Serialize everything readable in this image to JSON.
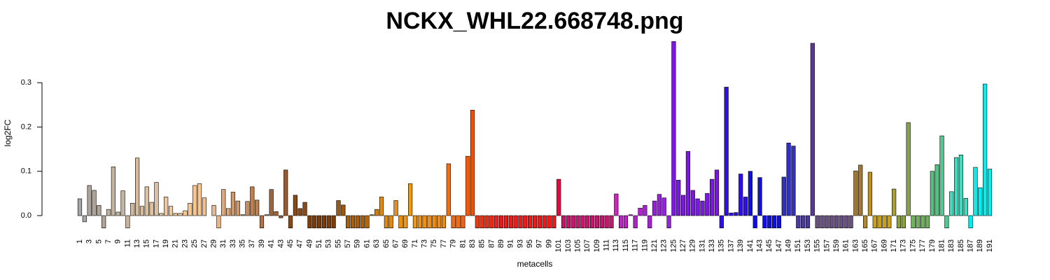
{
  "chart_data": {
    "type": "bar",
    "title": "NCKX_WHL22.668748.png",
    "x_label": "metacells",
    "y_label": "log2FC",
    "categories": [
      "1",
      null,
      "3",
      null,
      "5",
      null,
      "7",
      null,
      "9",
      null,
      "11",
      null,
      "13",
      null,
      "15",
      null,
      "17",
      null,
      "19",
      null,
      "21",
      null,
      "23",
      null,
      "25",
      null,
      "27",
      null,
      "29",
      null,
      "31",
      null,
      "33",
      null,
      "35",
      null,
      "37",
      null,
      "39",
      null,
      "41",
      null,
      "43",
      null,
      "45",
      null,
      "47",
      null,
      "49",
      null,
      "51",
      null,
      "53",
      null,
      "55",
      null,
      "57",
      null,
      "59",
      null,
      "61",
      null,
      "63",
      null,
      "65",
      null,
      "67",
      null,
      "69",
      null,
      "71",
      null,
      "73",
      null,
      "75",
      null,
      "77",
      null,
      "79",
      null,
      "81",
      null,
      "83",
      null,
      "85",
      null,
      "87",
      null,
      "89",
      null,
      "91",
      null,
      "93",
      null,
      "95",
      null,
      "97",
      null,
      "99",
      null,
      "101",
      null,
      "103",
      null,
      "105",
      null,
      "107",
      null,
      "109",
      null,
      "111",
      null,
      "113",
      null,
      "115",
      null,
      "117",
      null,
      "119",
      null,
      "121",
      null,
      "123",
      null,
      "125",
      null,
      "127",
      null,
      "129",
      null,
      "131",
      null,
      "133",
      null,
      "135",
      null,
      "137",
      null,
      "139",
      null,
      "141",
      null,
      "143",
      null,
      "145",
      null,
      "147",
      null,
      "149",
      null,
      "151",
      null,
      "153",
      null,
      "155",
      null,
      "157",
      null,
      "159",
      null,
      "161",
      null,
      "163",
      null,
      "165",
      null,
      "167",
      null,
      "169",
      null,
      "171",
      null,
      "173",
      null,
      "175",
      null,
      "177",
      null,
      "179",
      null,
      "181",
      null,
      "183",
      null,
      "185",
      null,
      "187",
      null,
      "189",
      null,
      "191"
    ],
    "values": [
      0.038,
      -0.014,
      0.068,
      0.057,
      0.023,
      -0.028,
      0.014,
      0.11,
      0.008,
      0.056,
      -0.028,
      0.028,
      0.13,
      0.021,
      0.065,
      0.03,
      0.075,
      0.005,
      0.042,
      0.021,
      0.005,
      0.005,
      0.011,
      0.028,
      0.068,
      0.072,
      0.04,
      0,
      0.023,
      -0.028,
      0.059,
      0.016,
      0.053,
      0.033,
      0.002,
      0.032,
      0.065,
      0.035,
      -0.028,
      0.002,
      0.059,
      0.009,
      -0.005,
      0.103,
      -0.028,
      0.046,
      0.016,
      0.03,
      -0.028,
      -0.028,
      -0.028,
      -0.028,
      -0.028,
      -0.028,
      0.034,
      0.024,
      -0.028,
      -0.028,
      -0.028,
      -0.028,
      -0.028,
      0.002,
      0.014,
      0.042,
      -0.028,
      -0.028,
      0.034,
      -0.028,
      -0.028,
      0.072,
      -0.028,
      -0.028,
      -0.028,
      -0.028,
      -0.028,
      -0.028,
      -0.028,
      0.117,
      -0.028,
      -0.028,
      -0.028,
      0.134,
      0.238,
      -0.028,
      -0.028,
      -0.028,
      -0.028,
      -0.028,
      -0.028,
      -0.028,
      -0.028,
      -0.028,
      -0.028,
      -0.028,
      -0.028,
      -0.028,
      -0.028,
      -0.028,
      -0.028,
      -0.028,
      0.082,
      -0.028,
      -0.028,
      -0.028,
      -0.028,
      -0.028,
      -0.028,
      -0.028,
      -0.028,
      -0.028,
      -0.028,
      -0.028,
      0.049,
      -0.028,
      -0.028,
      0.002,
      -0.028,
      0.017,
      0.023,
      -0.028,
      0.033,
      0.048,
      0.04,
      -0.028,
      0.393,
      0.08,
      0.046,
      0.145,
      0.057,
      0.038,
      0.033,
      0.05,
      0.082,
      0.103,
      -0.028,
      0.29,
      0.006,
      0.007,
      0.094,
      0.042,
      0.1,
      -0.028,
      0.086,
      -0.028,
      -0.028,
      -0.028,
      -0.028,
      0.087,
      0.164,
      0.157,
      -0.028,
      -0.028,
      -0.028,
      0.389,
      -0.028,
      -0.028,
      -0.028,
      -0.028,
      -0.028,
      -0.028,
      -0.028,
      -0.028,
      0.101,
      0.114,
      -0.028,
      0.098,
      -0.028,
      -0.028,
      -0.028,
      -0.028,
      0.06,
      -0.028,
      -0.028,
      0.21,
      -0.028,
      -0.028,
      -0.028,
      -0.028,
      0.1,
      0.115,
      0.18,
      -0.028,
      0.054,
      0.131,
      0.137,
      0.039,
      -0.028,
      0.109,
      0.063,
      0.297,
      0.105
    ],
    "colors": [
      "#a6a6a6",
      "#a6a6a6",
      "#aca49a",
      "#aca49a",
      "#b0a494",
      "#b0a494",
      "#c4b4a0",
      "#c4b4a0",
      "#c4b4a0",
      "#c4b4a0",
      "#c8b49c",
      "#d0b898",
      "#d4bc9c",
      "#d4bc9c",
      "#dcc0a0",
      "#dcc0a0",
      "#dcc0a0",
      "#e0c4a0",
      "#f0c8a0",
      "#f0c8a0",
      "#f5c896",
      "#f5c896",
      "#f8c890",
      "#f8c890",
      "#fcc890",
      "#fcc890",
      "#f0c090",
      "#f0c090",
      "#e8b888",
      "#e8b888",
      "#e0a878",
      "#e0a878",
      "#d09868",
      "#d09868",
      "#c88c5c",
      "#c88c5c",
      "#bc8050",
      "#bc8050",
      "#b07448",
      "#b07448",
      "#a0643a",
      "#a0643a",
      "#985a30",
      "#985a30",
      "#8b4a14",
      "#8b4a14",
      "#8b4a14",
      "#8b4a14",
      "#7a3c0a",
      "#7a3c0a",
      "#7a3c0a",
      "#7a3c0a",
      "#7a3c0a",
      "#7a3c0a",
      "#9c5810",
      "#9c5810",
      "#a86010",
      "#a86010",
      "#a86010",
      "#a86010",
      "#b06810",
      "#c07810",
      "#d08010",
      "#e08a10",
      "#e08a10",
      "#e08a10",
      "#e89010",
      "#e89010",
      "#f09810",
      "#f09810",
      "#f09810",
      "#f09010",
      "#f09010",
      "#f09010",
      "#f08a10",
      "#f08a10",
      "#f08a10",
      "#f07010",
      "#f56a10",
      "#f56a10",
      "#f86010",
      "#f85a00",
      "#f55000",
      "#f43a0a",
      "#f03010",
      "#f02810",
      "#f02810",
      "#f02020",
      "#ee1a1a",
      "#ee1a1a",
      "#ee1a1a",
      "#ee1a1a",
      "#ee1a1a",
      "#ee1a1a",
      "#ee1a1a",
      "#ee1a1a",
      "#ee1a1a",
      "#ee1a1a",
      "#ee1a1a",
      "#ee1a1a",
      "#dc1040",
      "#c8146e",
      "#c8146e",
      "#c8146e",
      "#c8146e",
      "#c8146e",
      "#c8146e",
      "#c8146e",
      "#c8146e",
      "#c8146e",
      "#c8146e",
      "#c8146e",
      "#c828b8",
      "#c020c8",
      "#c020c8",
      "#b420d0",
      "#b420d0",
      "#b420d0",
      "#a820d8",
      "#a820d8",
      "#9a20e0",
      "#9a20e0",
      "#9a20e0",
      "#9a20e0",
      "#7a18e0",
      "#7a18e0",
      "#7a18e0",
      "#7a18e0",
      "#7a18e0",
      "#7a18e0",
      "#7a18e0",
      "#7a18e0",
      "#7a18e0",
      "#7a18e0",
      "#3010e8",
      "#3010e8",
      "#3010e8",
      "#3010e8",
      "#3010e8",
      "#3010e8",
      "#1010e0",
      "#1010e0",
      "#1010e0",
      "#1010e0",
      "#1010e0",
      "#1010e0",
      "#1010e0",
      "#3030c0",
      "#3030c0",
      "#3030c0",
      "#4a3aa0",
      "#4a3aa0",
      "#4a3aa0",
      "#5a3a90",
      "#6a5080",
      "#6a5080",
      "#6a5080",
      "#6a5080",
      "#6a5080",
      "#6a5080",
      "#6a5080",
      "#6a5080",
      "#a07838",
      "#a07838",
      "#b08830",
      "#c09020",
      "#c8a020",
      "#c8a020",
      "#c8a020",
      "#c8a020",
      "#a8a030",
      "#88a040",
      "#88a040",
      "#88a048",
      "#70b060",
      "#70b060",
      "#70b060",
      "#70b060",
      "#58c080",
      "#58c080",
      "#50c890",
      "#50c890",
      "#40dcc0",
      "#40dcc0",
      "#40dcc0",
      "#40dcc0",
      "#00f0f0",
      "#00f0f0",
      "#00f0f0",
      "#00f0f0",
      "#00f0f0"
    ],
    "ylim": [
      -0.045,
      0.41
    ],
    "yticks": [
      {
        "value": 0,
        "label": "0.0"
      },
      0.1,
      0.2,
      0.3
    ]
  }
}
